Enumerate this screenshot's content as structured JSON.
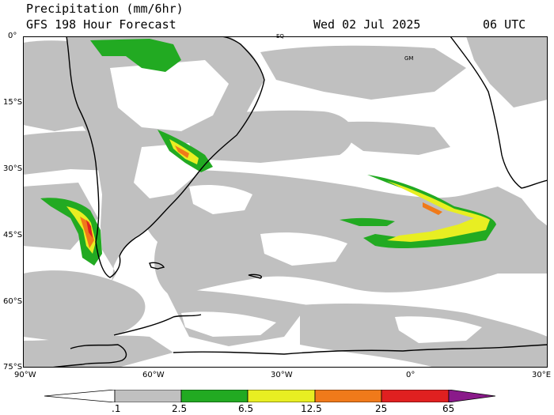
{
  "header": {
    "title": "Precipitation (mm/6hr)",
    "subtitle": "GFS 198 Hour Forecast",
    "date": "Wed 02 Jul 2025",
    "time": "06 UTC"
  },
  "axes": {
    "lat_labels": [
      "0°",
      "15°S",
      "30°S",
      "45°S",
      "60°S",
      "75°S"
    ],
    "lon_labels": [
      "90°W",
      "60°W",
      "30°W",
      "0°",
      "30°E"
    ]
  },
  "markers": {
    "eq": "EQ",
    "gm": "GM"
  },
  "colorbar": {
    "labels": [
      ".1",
      "2.5",
      "6.5",
      "12.5",
      "25",
      "65"
    ],
    "colors": [
      "#ffffff",
      "#c0c0c0",
      "#22aa22",
      "#e8ee22",
      "#f07a1a",
      "#e02020",
      "#8a1a8a"
    ]
  },
  "colors": {
    "ocean": "#ffffff",
    "light_precip": "#c0c0c0",
    "green": "#22aa22",
    "yellow": "#e8ee22",
    "orange": "#f07a1a",
    "red": "#e02020",
    "coast": "#000000"
  }
}
